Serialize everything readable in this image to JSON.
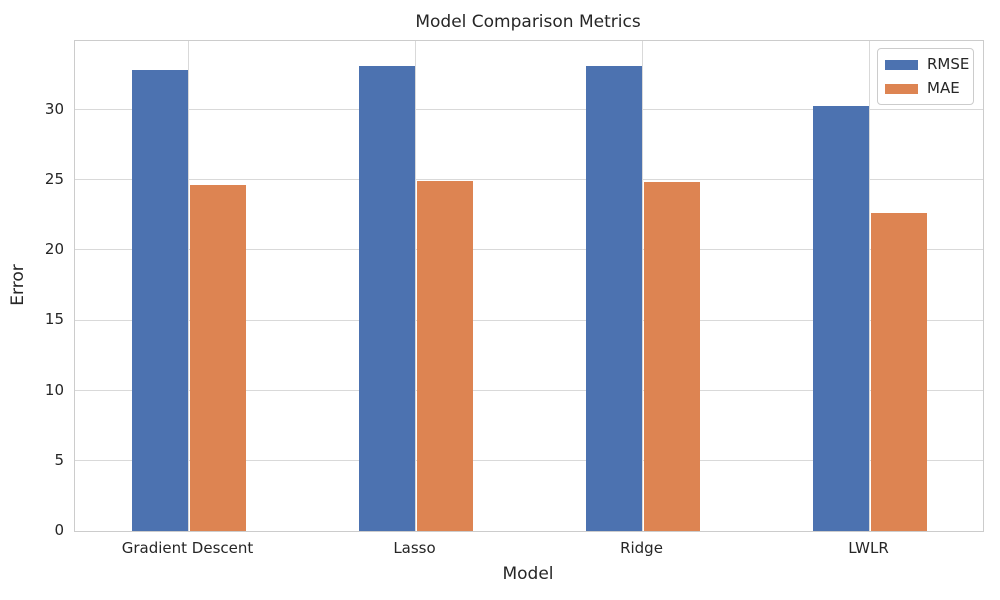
{
  "chart_data": {
    "type": "bar",
    "title": "Model Comparison Metrics",
    "xlabel": "Model",
    "ylabel": "Error",
    "categories": [
      "Gradient Descent",
      "Lasso",
      "Ridge",
      "LWLR"
    ],
    "series": [
      {
        "name": "RMSE",
        "color": "#4C72B0",
        "values": [
          32.8,
          33.1,
          33.1,
          30.3
        ]
      },
      {
        "name": "MAE",
        "color": "#DD8452",
        "values": [
          24.65,
          24.9,
          24.85,
          22.65
        ]
      }
    ],
    "ylim": [
      0,
      34.9
    ],
    "yticks": [
      0,
      5,
      10,
      15,
      20,
      25,
      30
    ],
    "grid": "both",
    "legend_position": "upper-right",
    "style": {
      "background": "#FFFFFF",
      "grid_color": "#D9D9D9",
      "spine_color": "#CCCCCC",
      "text_color": "#262626"
    }
  }
}
